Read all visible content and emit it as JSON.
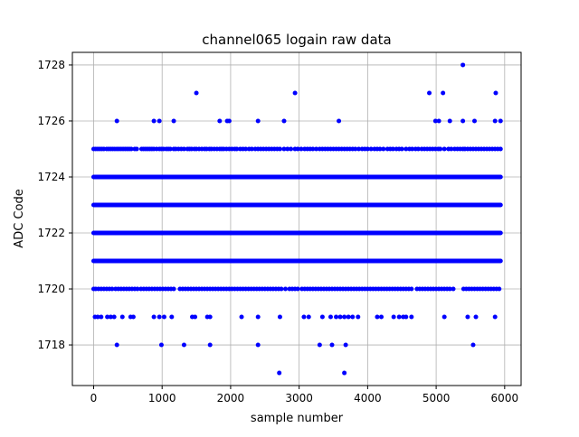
{
  "chart_data": {
    "type": "scatter",
    "title": "channel065 logain raw data",
    "xlabel": "sample number",
    "ylabel": "ADC Code",
    "xlim": [
      -310,
      6240
    ],
    "ylim": [
      1716.55,
      1728.45
    ],
    "xticks": [
      0,
      1000,
      2000,
      3000,
      4000,
      5000,
      6000
    ],
    "yticks": [
      1718,
      1720,
      1722,
      1724,
      1726,
      1728
    ],
    "grid": true,
    "legend": "none",
    "marker_color": "#0000ff",
    "series": [
      {
        "dense_levels": [
          1721,
          1722,
          1723,
          1724
        ],
        "x_range": [
          0,
          5940
        ],
        "level_1725_x": [
          0,
          30,
          60,
          90,
          120,
          150,
          190,
          220,
          250,
          280,
          310,
          340,
          370,
          400,
          430,
          460,
          490,
          520,
          550,
          600,
          630,
          700,
          730,
          760,
          790,
          820,
          850,
          880,
          920,
          960,
          990,
          1020,
          1060,
          1090,
          1120,
          1170,
          1200,
          1240,
          1280,
          1320,
          1370,
          1400,
          1430,
          1470,
          1500,
          1540,
          1580,
          1620,
          1650,
          1690,
          1720,
          1760,
          1800,
          1840,
          1870,
          1900,
          1940,
          1980,
          2020,
          2060,
          2090,
          2140,
          2180,
          2220,
          2270,
          2310,
          2360,
          2400,
          2440,
          2480,
          2520,
          2560,
          2600,
          2640,
          2680,
          2720,
          2780,
          2830,
          2880,
          2940,
          2980,
          3030,
          3080,
          3120,
          3160,
          3200,
          3250,
          3300,
          3340,
          3380,
          3420,
          3460,
          3500,
          3540,
          3580,
          3620,
          3660,
          3700,
          3740,
          3780,
          3820,
          3870,
          3920,
          3960,
          4000,
          4050,
          4100,
          4140,
          4180,
          4230,
          4290,
          4330,
          4370,
          4420,
          4460,
          4500,
          4560,
          4610,
          4650,
          4700,
          4740,
          4790,
          4830,
          4870,
          4910,
          4950,
          4990,
          5030,
          5060,
          5120,
          5180,
          5220,
          5270,
          5310,
          5350,
          5390,
          5420,
          5460,
          5500,
          5540,
          5580,
          5620,
          5660,
          5700,
          5740,
          5780,
          5820,
          5860,
          5900,
          5940
        ],
        "level_1720_x": [
          0,
          30,
          70,
          110,
          150,
          190,
          230,
          270,
          320,
          360,
          400,
          440,
          480,
          520,
          560,
          600,
          640,
          690,
          730,
          770,
          810,
          850,
          890,
          930,
          970,
          1010,
          1050,
          1090,
          1130,
          1170,
          1260,
          1300,
          1340,
          1380,
          1420,
          1460,
          1500,
          1540,
          1580,
          1620,
          1660,
          1700,
          1740,
          1780,
          1820,
          1860,
          1900,
          1940,
          1980,
          2020,
          2060,
          2100,
          2140,
          2180,
          2220,
          2260,
          2300,
          2340,
          2380,
          2420,
          2460,
          2500,
          2540,
          2580,
          2620,
          2660,
          2700,
          2740,
          2800,
          2860,
          2900,
          2940,
          2980,
          3040,
          3080,
          3120,
          3160,
          3200,
          3240,
          3280,
          3320,
          3360,
          3400,
          3440,
          3480,
          3520,
          3560,
          3600,
          3640,
          3680,
          3720,
          3760,
          3800,
          3840,
          3880,
          3920,
          3960,
          4000,
          4040,
          4080,
          4120,
          4160,
          4200,
          4240,
          4280,
          4320,
          4360,
          4400,
          4440,
          4480,
          4520,
          4560,
          4600,
          4640,
          4720,
          4760,
          4800,
          4840,
          4880,
          4920,
          4960,
          5000,
          5040,
          5080,
          5120,
          5160,
          5200,
          5250,
          5400,
          5440,
          5480,
          5520,
          5560,
          5600,
          5640,
          5680,
          5720,
          5760,
          5800,
          5840,
          5880,
          5920
        ],
        "outliers": [
          [
            340,
            1726
          ],
          [
            880,
            1726
          ],
          [
            960,
            1726
          ],
          [
            1170,
            1726
          ],
          [
            1840,
            1726
          ],
          [
            1950,
            1726
          ],
          [
            1980,
            1726
          ],
          [
            2400,
            1726
          ],
          [
            2780,
            1726
          ],
          [
            3580,
            1726
          ],
          [
            4990,
            1726
          ],
          [
            5040,
            1726
          ],
          [
            5200,
            1726
          ],
          [
            5390,
            1726
          ],
          [
            5560,
            1726
          ],
          [
            5860,
            1726
          ],
          [
            5940,
            1726
          ],
          [
            1500,
            1727
          ],
          [
            2940,
            1727
          ],
          [
            4900,
            1727
          ],
          [
            5100,
            1727
          ],
          [
            5870,
            1727
          ],
          [
            5390,
            1728
          ],
          [
            20,
            1719
          ],
          [
            60,
            1719
          ],
          [
            110,
            1719
          ],
          [
            200,
            1719
          ],
          [
            250,
            1719
          ],
          [
            300,
            1719
          ],
          [
            420,
            1719
          ],
          [
            540,
            1719
          ],
          [
            580,
            1719
          ],
          [
            880,
            1719
          ],
          [
            960,
            1719
          ],
          [
            1030,
            1719
          ],
          [
            1140,
            1719
          ],
          [
            1440,
            1719
          ],
          [
            1480,
            1719
          ],
          [
            1660,
            1719
          ],
          [
            1700,
            1719
          ],
          [
            2160,
            1719
          ],
          [
            2400,
            1719
          ],
          [
            2720,
            1719
          ],
          [
            3070,
            1719
          ],
          [
            3140,
            1719
          ],
          [
            3340,
            1719
          ],
          [
            3460,
            1719
          ],
          [
            3540,
            1719
          ],
          [
            3600,
            1719
          ],
          [
            3660,
            1719
          ],
          [
            3720,
            1719
          ],
          [
            3780,
            1719
          ],
          [
            3860,
            1719
          ],
          [
            4140,
            1719
          ],
          [
            4200,
            1719
          ],
          [
            4380,
            1719
          ],
          [
            4460,
            1719
          ],
          [
            4520,
            1719
          ],
          [
            4560,
            1719
          ],
          [
            4640,
            1719
          ],
          [
            5120,
            1719
          ],
          [
            5460,
            1719
          ],
          [
            5580,
            1719
          ],
          [
            5860,
            1719
          ],
          [
            340,
            1718
          ],
          [
            990,
            1718
          ],
          [
            1320,
            1718
          ],
          [
            1700,
            1718
          ],
          [
            2400,
            1718
          ],
          [
            3300,
            1718
          ],
          [
            3480,
            1718
          ],
          [
            3680,
            1718
          ],
          [
            5540,
            1718
          ],
          [
            2710,
            1717
          ],
          [
            3660,
            1717
          ]
        ]
      }
    ]
  }
}
